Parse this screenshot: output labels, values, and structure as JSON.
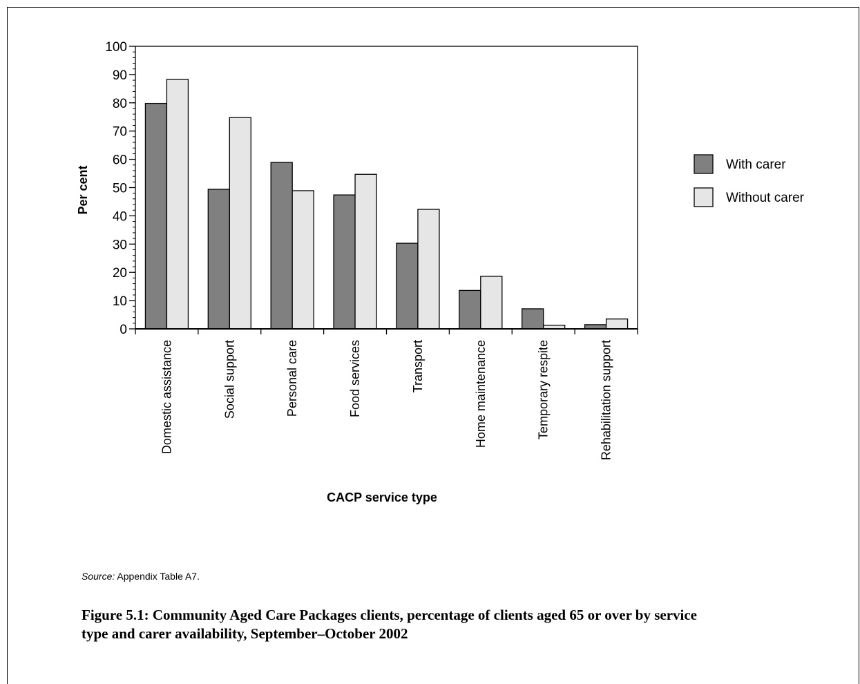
{
  "chart_data": {
    "type": "bar",
    "categories": [
      "Domestic assistance",
      "Social support",
      "Personal care",
      "Food services",
      "Transport",
      "Home maintenance",
      "Temporary respite",
      "Rehabilitation support"
    ],
    "series": [
      {
        "name": "With carer",
        "color": "#808080",
        "values": [
          79.8,
          49.4,
          58.9,
          47.4,
          30.3,
          13.6,
          7.1,
          1.5
        ]
      },
      {
        "name": "Without carer",
        "color": "#e6e6e6",
        "values": [
          88.3,
          74.8,
          48.9,
          54.7,
          42.3,
          18.6,
          1.3,
          3.5
        ]
      }
    ],
    "xlabel": "CACP service type",
    "ylabel": "Per cent",
    "ylim": [
      0,
      100
    ],
    "yticks": [
      0,
      10,
      20,
      30,
      40,
      50,
      60,
      70,
      80,
      90,
      100
    ],
    "grid": false,
    "legend": "right"
  },
  "source": {
    "label": "Source:",
    "text": " Appendix Table A7."
  },
  "caption": "Figure 5.1: Community Aged Care Packages clients, percentage of clients aged 65 or over by service type and carer availability, September–October 2002"
}
